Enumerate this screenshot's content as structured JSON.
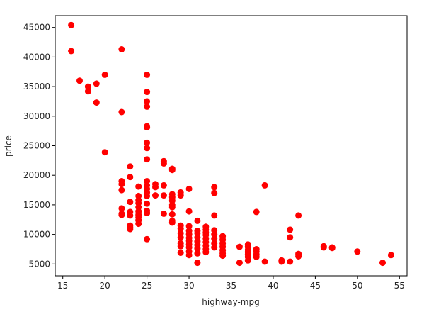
{
  "chart_data": {
    "type": "scatter",
    "title": "",
    "xlabel": "highway-mpg",
    "ylabel": "price",
    "xlim": [
      14.1,
      55.9
    ],
    "ylim": [
      3000,
      47000
    ],
    "xticks": [
      15,
      20,
      25,
      30,
      35,
      40,
      45,
      50,
      55
    ],
    "yticks": [
      5000,
      10000,
      15000,
      20000,
      25000,
      30000,
      35000,
      40000,
      45000
    ],
    "grid": false,
    "marker_color": "#ff0000",
    "points": [
      [
        16,
        45400
      ],
      [
        16,
        41000
      ],
      [
        17,
        36000
      ],
      [
        18,
        35000
      ],
      [
        18,
        34200
      ],
      [
        19,
        35500
      ],
      [
        19,
        32300
      ],
      [
        20,
        37000
      ],
      [
        20,
        23900
      ],
      [
        22,
        41300
      ],
      [
        22,
        30700
      ],
      [
        22,
        19000
      ],
      [
        22,
        18500
      ],
      [
        22,
        17500
      ],
      [
        22,
        14400
      ],
      [
        22,
        13500
      ],
      [
        22,
        13300
      ],
      [
        23,
        21500
      ],
      [
        23,
        19700
      ],
      [
        23,
        15500
      ],
      [
        23,
        13800
      ],
      [
        23,
        13200
      ],
      [
        23,
        11500
      ],
      [
        23,
        10900
      ],
      [
        23,
        11200
      ],
      [
        24,
        18100
      ],
      [
        24,
        16500
      ],
      [
        24,
        15800
      ],
      [
        24,
        15300
      ],
      [
        24,
        14600
      ],
      [
        24,
        13900
      ],
      [
        24,
        13300
      ],
      [
        24,
        12400
      ],
      [
        24,
        11800
      ],
      [
        24,
        12900
      ],
      [
        25,
        37000
      ],
      [
        25,
        34100
      ],
      [
        25,
        32500
      ],
      [
        25,
        31600
      ],
      [
        25,
        28300
      ],
      [
        25,
        28100
      ],
      [
        25,
        25500
      ],
      [
        25,
        24600
      ],
      [
        25,
        22700
      ],
      [
        25,
        19000
      ],
      [
        25,
        18300
      ],
      [
        25,
        17700
      ],
      [
        25,
        17100
      ],
      [
        25,
        16500
      ],
      [
        25,
        15200
      ],
      [
        25,
        14000
      ],
      [
        25,
        13600
      ],
      [
        25,
        9200
      ],
      [
        26,
        18500
      ],
      [
        26,
        18000
      ],
      [
        26,
        16600
      ],
      [
        27,
        22400
      ],
      [
        27,
        22000
      ],
      [
        27,
        18300
      ],
      [
        27,
        16600
      ],
      [
        27,
        13500
      ],
      [
        28,
        21100
      ],
      [
        28,
        20900
      ],
      [
        28,
        16800
      ],
      [
        28,
        16300
      ],
      [
        28,
        15700
      ],
      [
        28,
        15000
      ],
      [
        28,
        14600
      ],
      [
        28,
        13400
      ],
      [
        28,
        12300
      ],
      [
        28,
        12000
      ],
      [
        29,
        17100
      ],
      [
        29,
        16600
      ],
      [
        29,
        11500
      ],
      [
        29,
        11000
      ],
      [
        29,
        10200
      ],
      [
        29,
        9500
      ],
      [
        29,
        8500
      ],
      [
        29,
        8000
      ],
      [
        29,
        6900
      ],
      [
        30,
        17700
      ],
      [
        30,
        13900
      ],
      [
        30,
        11400
      ],
      [
        30,
        10600
      ],
      [
        30,
        10000
      ],
      [
        30,
        9400
      ],
      [
        30,
        8900
      ],
      [
        30,
        8300
      ],
      [
        30,
        7800
      ],
      [
        30,
        7100
      ],
      [
        30,
        6500
      ],
      [
        31,
        12300
      ],
      [
        31,
        10600
      ],
      [
        31,
        10200
      ],
      [
        31,
        9500
      ],
      [
        31,
        8800
      ],
      [
        31,
        8200
      ],
      [
        31,
        7600
      ],
      [
        31,
        6800
      ],
      [
        31,
        5200
      ],
      [
        32,
        11300
      ],
      [
        32,
        10800
      ],
      [
        32,
        10300
      ],
      [
        32,
        9900
      ],
      [
        32,
        9300
      ],
      [
        32,
        8700
      ],
      [
        32,
        8100
      ],
      [
        32,
        7500
      ],
      [
        32,
        7000
      ],
      [
        33,
        18000
      ],
      [
        33,
        17000
      ],
      [
        33,
        13200
      ],
      [
        33,
        10700
      ],
      [
        33,
        10000
      ],
      [
        33,
        9300
      ],
      [
        33,
        8500
      ],
      [
        33,
        7800
      ],
      [
        34,
        9700
      ],
      [
        34,
        9100
      ],
      [
        34,
        8500
      ],
      [
        34,
        7900
      ],
      [
        34,
        7300
      ],
      [
        34,
        6800
      ],
      [
        34,
        6400
      ],
      [
        36,
        7900
      ],
      [
        36,
        5200
      ],
      [
        37,
        8300
      ],
      [
        37,
        7900
      ],
      [
        37,
        7400
      ],
      [
        37,
        7000
      ],
      [
        37,
        6600
      ],
      [
        37,
        6200
      ],
      [
        37,
        5600
      ],
      [
        38,
        13800
      ],
      [
        38,
        7500
      ],
      [
        38,
        7100
      ],
      [
        38,
        6600
      ],
      [
        38,
        6200
      ],
      [
        39,
        18300
      ],
      [
        39,
        5400
      ],
      [
        41,
        5600
      ],
      [
        41,
        5400
      ],
      [
        42,
        10800
      ],
      [
        42,
        9500
      ],
      [
        42,
        5400
      ],
      [
        43,
        13200
      ],
      [
        43,
        6700
      ],
      [
        43,
        6300
      ],
      [
        46,
        8000
      ],
      [
        46,
        7800
      ],
      [
        47,
        7800
      ],
      [
        47,
        7700
      ],
      [
        50,
        7100
      ],
      [
        53,
        5200
      ],
      [
        54,
        6500
      ]
    ]
  }
}
